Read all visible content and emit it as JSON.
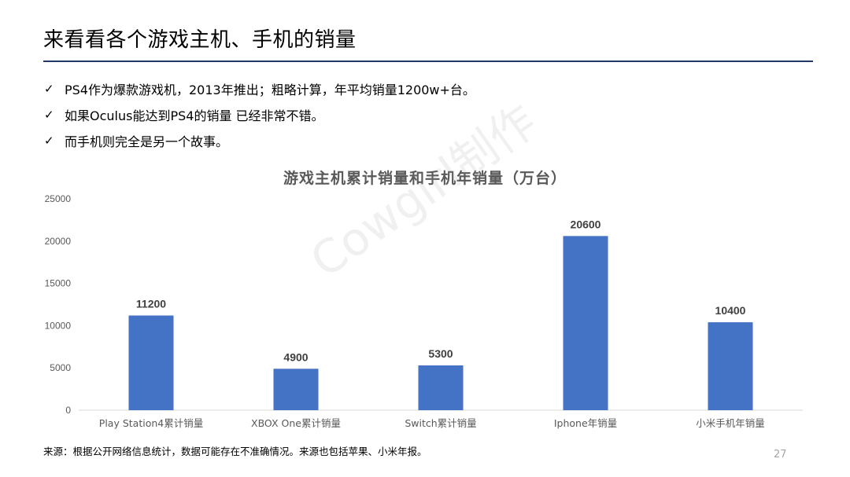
{
  "slide": {
    "title": "来看看各个游戏主机、手机的销量",
    "bullets": [
      "PS4作为爆款游戏机，2013年推出；粗略计算，年平均销量1200w+台。",
      "如果Oculus能达到PS4的销量 已经非常不错。",
      "而手机则完全是另一个故事。"
    ],
    "bullet_glyph": "✓",
    "source_note": "来源：根据公开网络信息统计，数据可能存在不准确情况。来源也包括苹果、小米年报。",
    "page_number": "27",
    "watermark": "Cowgirl制作",
    "rule_color": "#1f3864"
  },
  "chart_data": {
    "type": "bar",
    "title": "游戏主机累计销量和手机年销量（万台）",
    "categories": [
      "Play Station4累计销量",
      "XBOX One累计销量",
      "Switch累计销量",
      "Iphone年销量",
      "小米手机年销量"
    ],
    "values": [
      11200,
      4900,
      5300,
      20600,
      10400
    ],
    "data_labels": [
      "11200",
      "4900",
      "5300",
      "20600",
      "10400"
    ],
    "yticks": [
      0,
      5000,
      10000,
      15000,
      20000,
      25000
    ],
    "ylim": [
      0,
      25000
    ],
    "xlabel": "",
    "ylabel": "",
    "grid": false,
    "legend": "none",
    "bar_color": "#4472c4"
  }
}
